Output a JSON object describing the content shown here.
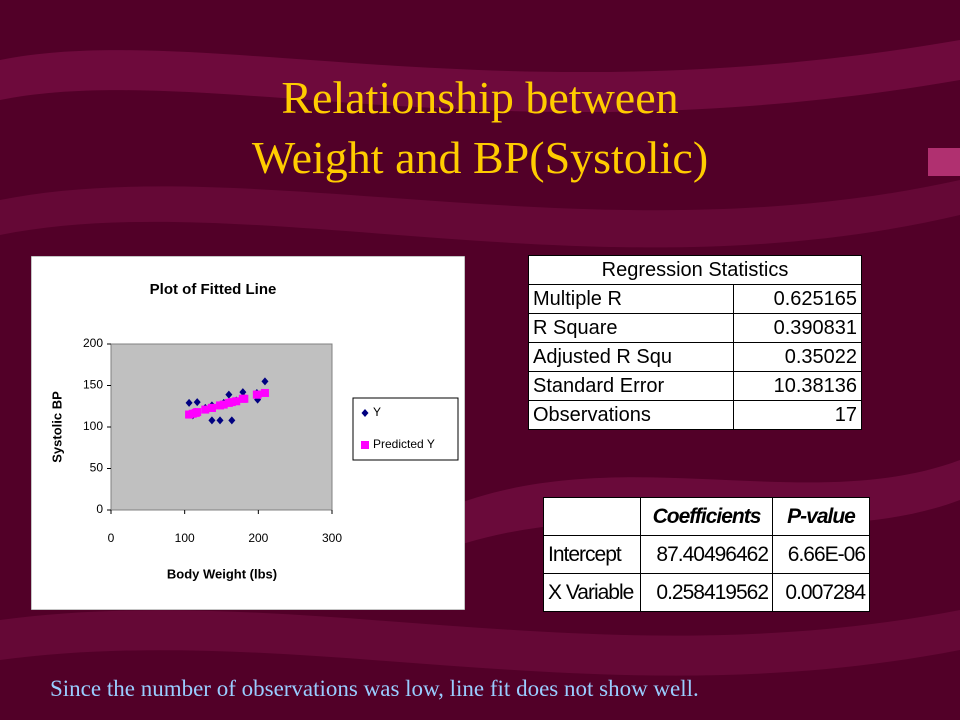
{
  "title": [
    "Relationship between",
    "Weight and BP(Systolic)"
  ],
  "chart_data": {
    "type": "scatter",
    "title": "Plot of Fitted Line",
    "x_label": "Body Weight (lbs)",
    "y_label": "Systolic BP",
    "x": [
      106,
      111,
      117,
      115,
      137,
      148,
      164,
      153,
      160,
      179,
      181,
      199,
      198,
      209,
      137,
      128,
      170
    ],
    "series": [
      {
        "name": "Y",
        "color": "#000080",
        "marker": "diamond",
        "values": [
          129,
          114,
          130,
          118,
          108,
          108,
          108,
          129,
          139,
          142,
          135,
          133,
          141,
          155,
          126,
          123,
          132
        ]
      },
      {
        "name": "Predicted Y",
        "color": "#ff00ff",
        "marker": "square",
        "values": [
          115,
          116,
          118,
          117,
          123,
          126,
          130,
          127,
          129,
          134,
          134,
          139,
          139,
          141,
          123,
          121,
          131
        ]
      }
    ],
    "xlim": [
      0,
      300
    ],
    "xticks": [
      0,
      100,
      200,
      300
    ],
    "ylim": [
      0,
      200
    ],
    "yticks": [
      0,
      50,
      100,
      150,
      200
    ],
    "grid": false,
    "legend": "right",
    "plot_background": "#c0c0c0"
  },
  "regression_table": {
    "header": "Regression Statistics",
    "rows": [
      [
        "Multiple R",
        "0.625165"
      ],
      [
        "R Square",
        "0.390831"
      ],
      [
        "Adjusted R Squ",
        "0.35022"
      ],
      [
        "Standard Error",
        "10.38136"
      ],
      [
        "Observations",
        "17"
      ]
    ]
  },
  "coefficients_table": {
    "header": [
      "Coefficients",
      "P-value"
    ],
    "rows": [
      [
        "Intercept",
        "87.40496462",
        "6.66E-06"
      ],
      [
        "X Variable",
        "0.258419562",
        "0.007284"
      ]
    ]
  },
  "footer": "Since the number of observations was low, line fit does not show well."
}
